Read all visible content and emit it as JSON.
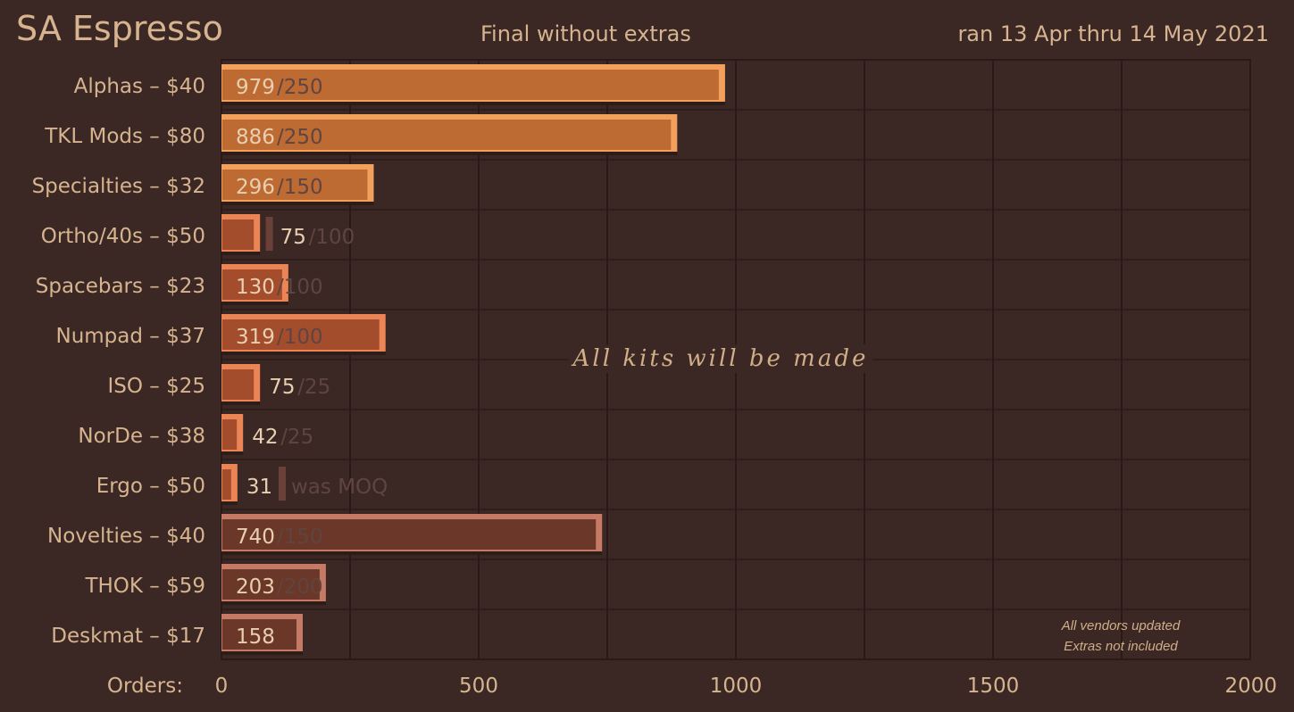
{
  "header": {
    "title": "SA Espresso",
    "subtitle": "Final without extras",
    "date_range": "ran 13 Apr thru 14 May 2021"
  },
  "notes": {
    "line1": "All vendors updated",
    "line2": "Extras not included"
  },
  "chart_data": {
    "type": "bar",
    "orientation": "horizontal",
    "title": "SA Espresso",
    "subtitle": "Final without extras",
    "xlabel": "Orders:",
    "xlim": [
      0,
      2000
    ],
    "xticks": [
      0,
      500,
      1000,
      1500,
      2000
    ],
    "grid": true,
    "annotation": "All kits will be made",
    "categories": [
      "Alphas – $40",
      "TKL Mods – $80",
      "Specialties – $32",
      "Ortho/40s – $50",
      "Spacebars – $23",
      "Numpad – $37",
      "ISO – $25",
      "NorDe – $38",
      "Ergo – $50",
      "Novelties – $40",
      "THOK – $59",
      "Deskmat – $17"
    ],
    "values": [
      979,
      886,
      296,
      75,
      130,
      319,
      75,
      42,
      31,
      740,
      203,
      158
    ],
    "moq": [
      250,
      250,
      150,
      100,
      100,
      100,
      25,
      25,
      125,
      150,
      200,
      null
    ],
    "moq_labels": [
      "/250",
      "/250",
      "/150",
      "/100",
      "/100",
      "/100",
      "/25",
      "/25",
      "was MOQ",
      "/150",
      "/200",
      ""
    ],
    "colors": {
      "background": "#3b2724",
      "text": "#d6b48f",
      "muted": "#5e4540",
      "grid": "#2a1a17",
      "bar_orange": "#bd6b32",
      "bar_orange_hi": "#f3a05d",
      "bar_red": "#a34d2d",
      "bar_red_hi": "#ec8556",
      "bar_brown": "#6b3728",
      "bar_brown_hi": "#c57a66"
    }
  }
}
